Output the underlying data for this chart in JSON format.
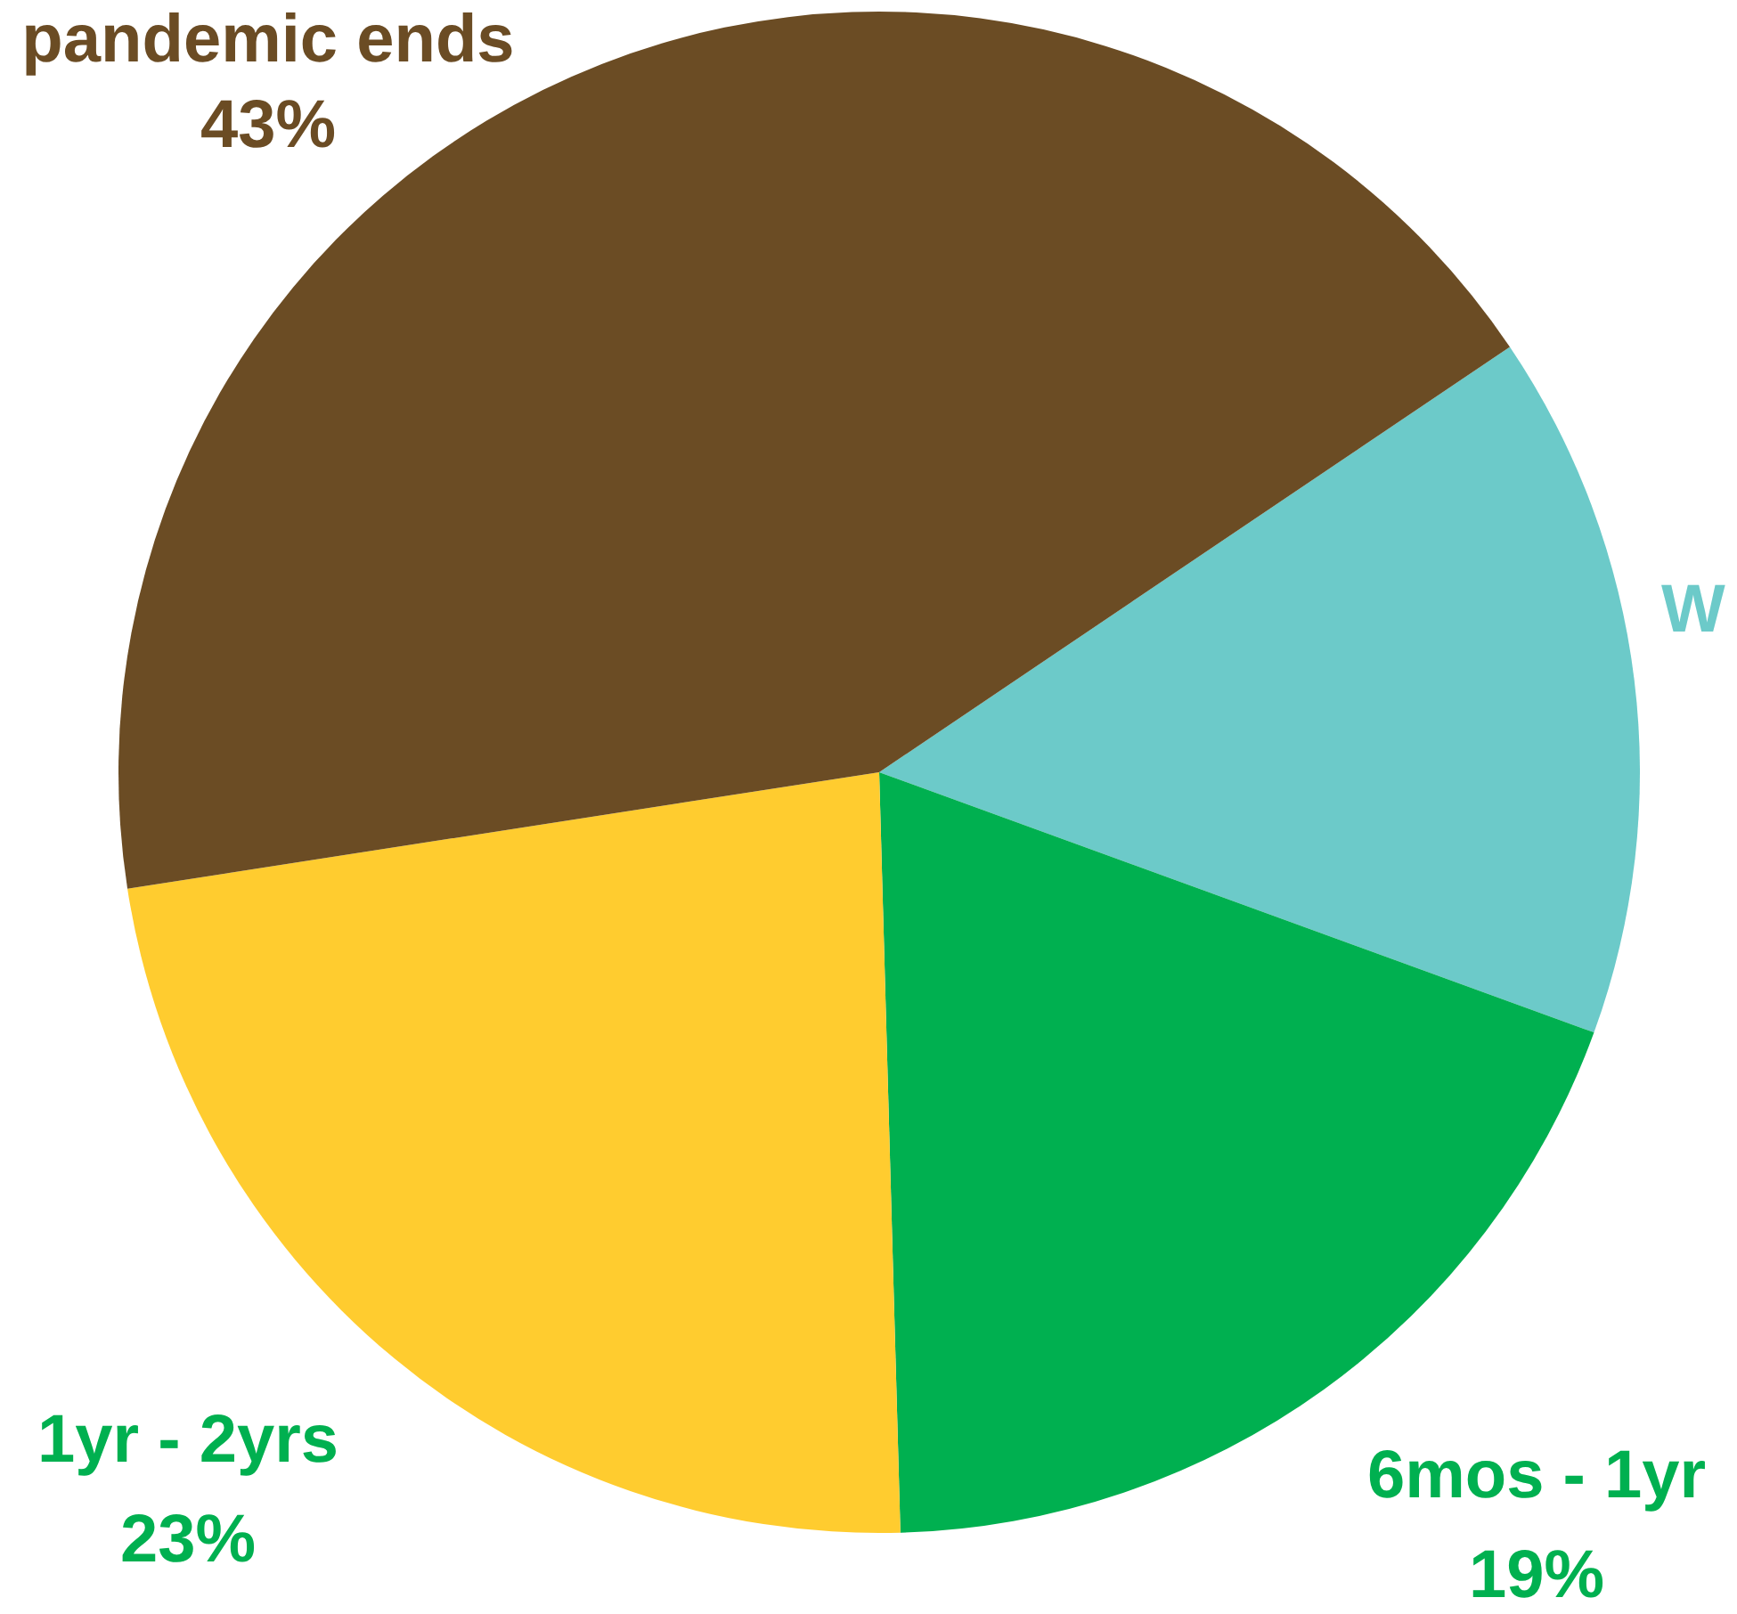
{
  "chart_data": {
    "type": "pie",
    "categories": [
      "W",
      "6mos - 1yr",
      "1yr - 2yrs",
      "pandemic ends"
    ],
    "values": [
      15,
      19,
      23,
      43
    ],
    "colors": [
      "#6ccac9",
      "#00b050",
      "#ffcc2f",
      "#6b4c24"
    ],
    "value_labels": [
      null,
      "19%",
      "23%",
      "43%"
    ]
  }
}
